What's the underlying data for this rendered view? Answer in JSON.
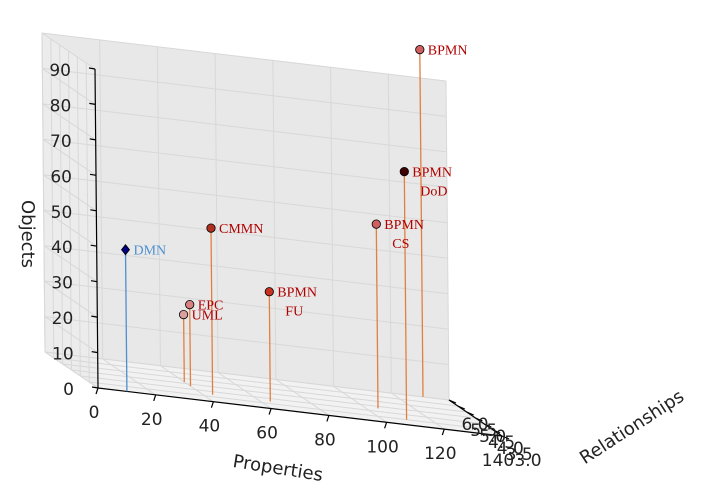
{
  "chart_data": {
    "type": "scatter",
    "projection": "3d",
    "xlabel": "Properties",
    "ylabel": "Relationships",
    "zlabel": "Objects",
    "x_ticks": [
      "0",
      "20",
      "40",
      "60",
      "80",
      "100",
      "120",
      "140"
    ],
    "y_ticks": [
      "3.0",
      "3.5",
      "4.0",
      "4.5",
      "5.0",
      "5.5",
      "6.0"
    ],
    "z_ticks": [
      "0",
      "10",
      "20",
      "30",
      "40",
      "50",
      "60",
      "70",
      "80",
      "90"
    ],
    "xlim": [
      0,
      140
    ],
    "ylim": [
      3.0,
      6.0
    ],
    "zlim": [
      0,
      90
    ],
    "grid": true,
    "points": [
      {
        "label_lines": [
          "DMN"
        ],
        "x": 10,
        "y": 3.0,
        "z": 40,
        "marker": "diamond",
        "color": "#000080",
        "stem_color": "#4f8fd0",
        "label_color": "#4f8fd0"
      },
      {
        "label_lines": [
          "CMMN"
        ],
        "x": 44,
        "y": 3.7,
        "z": 47,
        "marker": "circle",
        "color": "#b03020",
        "stem_color": "#e08040",
        "label_color": "#b00000"
      },
      {
        "label_lines": [
          "EPC"
        ],
        "x": 40,
        "y": 4.3,
        "z": 23,
        "marker": "circle",
        "color": "#d98080",
        "stem_color": "#e08040",
        "label_color": "#b00000"
      },
      {
        "label_lines": [
          "UML"
        ],
        "x": 40,
        "y": 4.65,
        "z": 19,
        "marker": "circle",
        "color": "#d9a0a0",
        "stem_color": "#e08040",
        "label_color": "#b00000"
      },
      {
        "label_lines": [
          "BPMN",
          "FU"
        ],
        "x": 64,
        "y": 3.7,
        "z": 31,
        "marker": "circle",
        "color": "#c83020",
        "stem_color": "#e08040",
        "label_color": "#b00000"
      },
      {
        "label_lines": [
          "BPMN",
          "CS"
        ],
        "x": 105,
        "y": 4.3,
        "z": 52,
        "marker": "circle",
        "color": "#d06060",
        "stem_color": "#e08040",
        "label_color": "#b00000"
      },
      {
        "label_lines": [
          "BPMN",
          "DoD"
        ],
        "x": 110,
        "y": 3.5,
        "z": 70,
        "marker": "circle",
        "color": "#400000",
        "stem_color": "#e08040",
        "label_color": "#b00000"
      },
      {
        "label_lines": [
          "BPMN"
        ],
        "x": 131,
        "y": 6.0,
        "z": 98,
        "marker": "circle",
        "color": "#d06060",
        "stem_color": "#e08040",
        "label_color": "#b00000"
      }
    ]
  }
}
